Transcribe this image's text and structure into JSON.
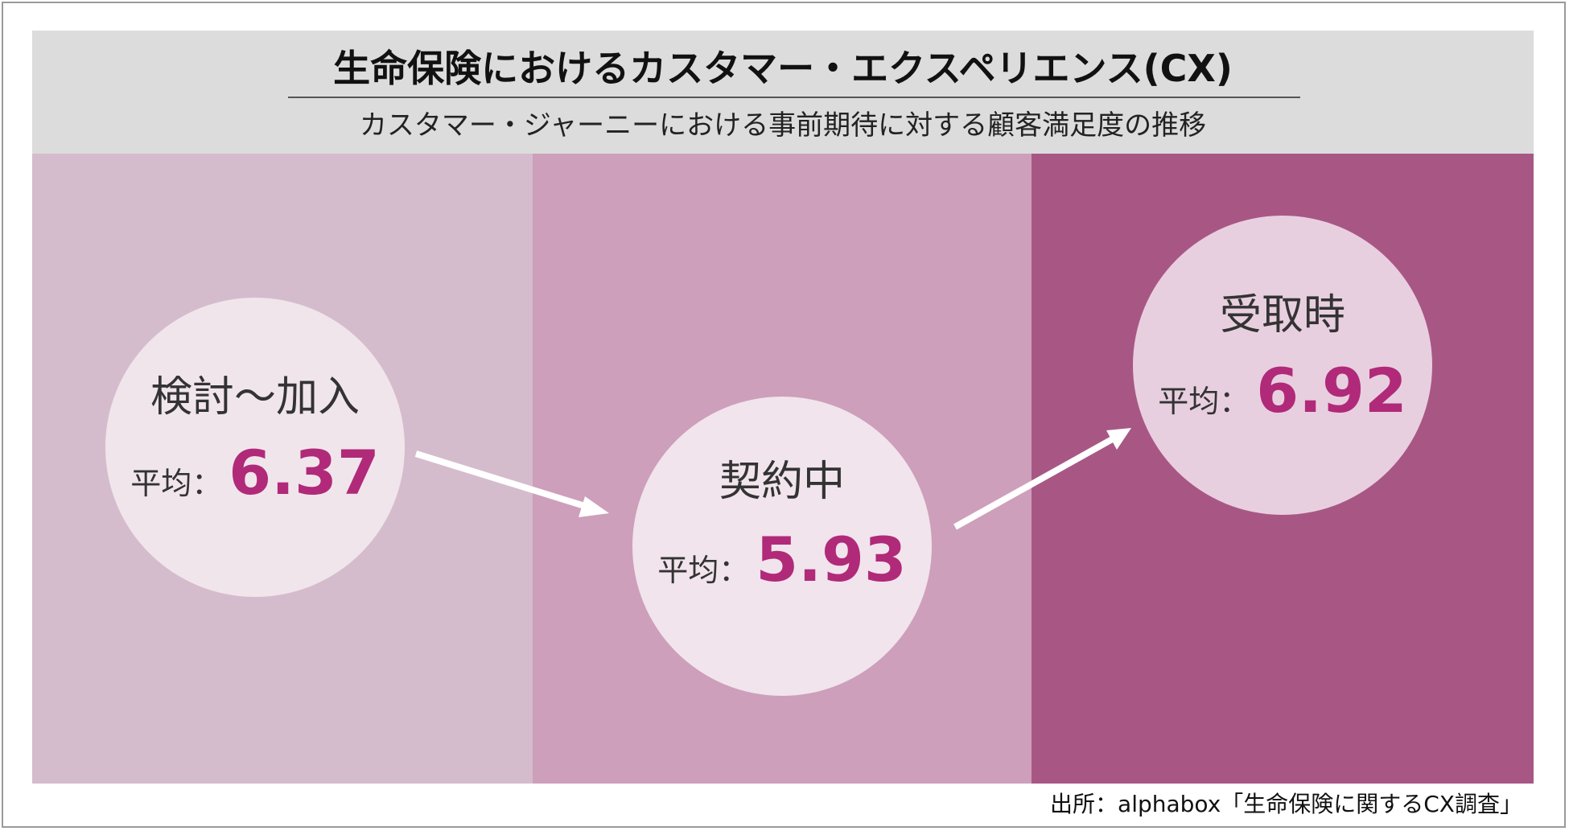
{
  "header": {
    "title": "生命保険におけるカスタマー・エクスペリエンス(CX)",
    "subtitle": "カスタマー・ジャーニーにおける事前期待に対する顧客満足度の推移"
  },
  "stages": [
    {
      "name": "検討〜加入",
      "avg_label": "平均：",
      "avg_value": "6.37"
    },
    {
      "name": "契約中",
      "avg_label": "平均：",
      "avg_value": "5.93"
    },
    {
      "name": "受取時",
      "avg_label": "平均：",
      "avg_value": "6.92"
    }
  ],
  "colors": {
    "panel_1": "#d5bccc",
    "panel_2": "#cd9fbb",
    "panel_3": "#a85785",
    "value_accent": "#b02a79",
    "header_bg": "#dcdcdc"
  },
  "source": "出所：alphabox「生命保険に関するCX調査」"
}
